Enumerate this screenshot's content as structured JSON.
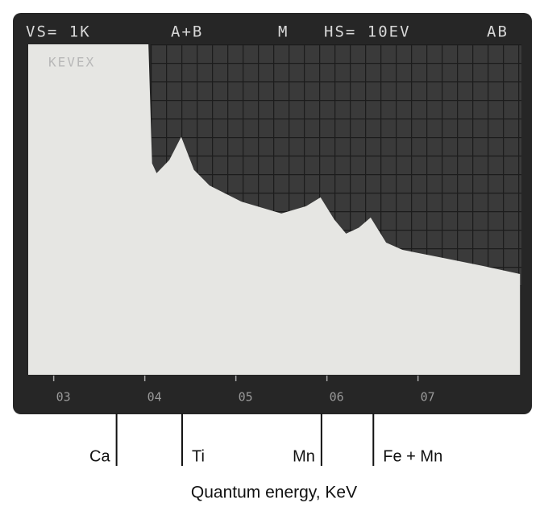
{
  "chart_data": {
    "type": "area",
    "xlabel": "Quantum energy, KeV",
    "annotations": [
      "VS= 1K",
      "A+B",
      "M",
      "HS= 10EV",
      "AB",
      "KEVEX"
    ],
    "x": [
      2.72,
      4.04,
      4.08,
      4.13,
      4.27,
      4.4,
      4.54,
      4.71,
      5.06,
      5.5,
      5.77,
      5.93,
      6.08,
      6.21,
      6.35,
      6.48,
      6.65,
      6.83,
      7.27,
      7.72,
      8.12
    ],
    "values": [
      1000,
      1000,
      640,
      610,
      650,
      720,
      620,
      573,
      524,
      488,
      510,
      537,
      470,
      427,
      445,
      476,
      400,
      378,
      354,
      329,
      305
    ],
    "color": "#e6e6e3",
    "xlim": [
      2.72,
      8.18
    ],
    "ylim": [
      0,
      1000
    ],
    "xticks": [
      {
        "value": 3,
        "label": "03"
      },
      {
        "value": 4,
        "label": "04"
      },
      {
        "value": 5,
        "label": "05"
      },
      {
        "value": 6,
        "label": "06"
      },
      {
        "value": 7,
        "label": "07"
      }
    ],
    "markers": [
      {
        "label": "Ca",
        "x": 3.69
      },
      {
        "label": "Ti",
        "x": 4.41
      },
      {
        "label": "Mn",
        "x": 5.94
      },
      {
        "label": "Fe + Mn",
        "x": 6.51
      }
    ]
  }
}
